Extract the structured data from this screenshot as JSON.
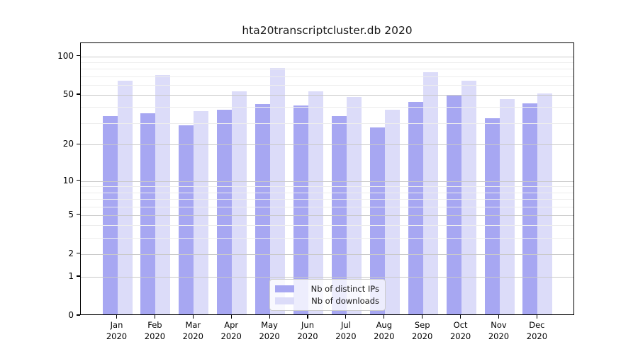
{
  "title": "hta20transcriptcluster.db 2020",
  "colors": {
    "distinct_ips_bar": "#a7a7f2",
    "downloads_bar": "#dcdcf9",
    "axis": "#000000",
    "grid_major": "#c9c9c9",
    "grid_minor": "#ededed",
    "background": "#ffffff"
  },
  "legend": {
    "labels": [
      "Nb of distinct IPs",
      "Nb of downloads"
    ]
  },
  "chart_data": {
    "type": "bar",
    "title": "hta20transcriptcluster.db 2020",
    "categories": [
      "Jan",
      "Feb",
      "Mar",
      "Apr",
      "May",
      "Jun",
      "Jul",
      "Aug",
      "Sep",
      "Oct",
      "Nov",
      "Dec"
    ],
    "x_tick_year": "2020",
    "series": [
      {
        "name": "Nb of distinct IPs",
        "color": "#a7a7f2",
        "values": [
          33,
          35,
          28,
          37,
          41,
          40,
          33,
          27,
          43,
          49,
          32,
          42
        ]
      },
      {
        "name": "Nb of downloads",
        "color": "#dcdcf9",
        "values": [
          63,
          70,
          36,
          52,
          79,
          52,
          47,
          37,
          73,
          63,
          45,
          50
        ]
      }
    ],
    "xlabel": "",
    "ylabel": "",
    "y_scale": "log10(value+1)",
    "y_major_ticks": [
      0,
      1,
      2,
      5,
      10,
      20,
      50,
      100
    ],
    "y_minor_ticks": [
      3,
      4,
      6,
      7,
      8,
      9,
      30,
      40,
      60,
      70,
      80,
      90
    ],
    "ylim": [
      0,
      127
    ],
    "grid": true,
    "legend_position": "inside bottom-center",
    "legend_order": [
      "Nb of distinct IPs",
      "Nb of downloads"
    ]
  }
}
